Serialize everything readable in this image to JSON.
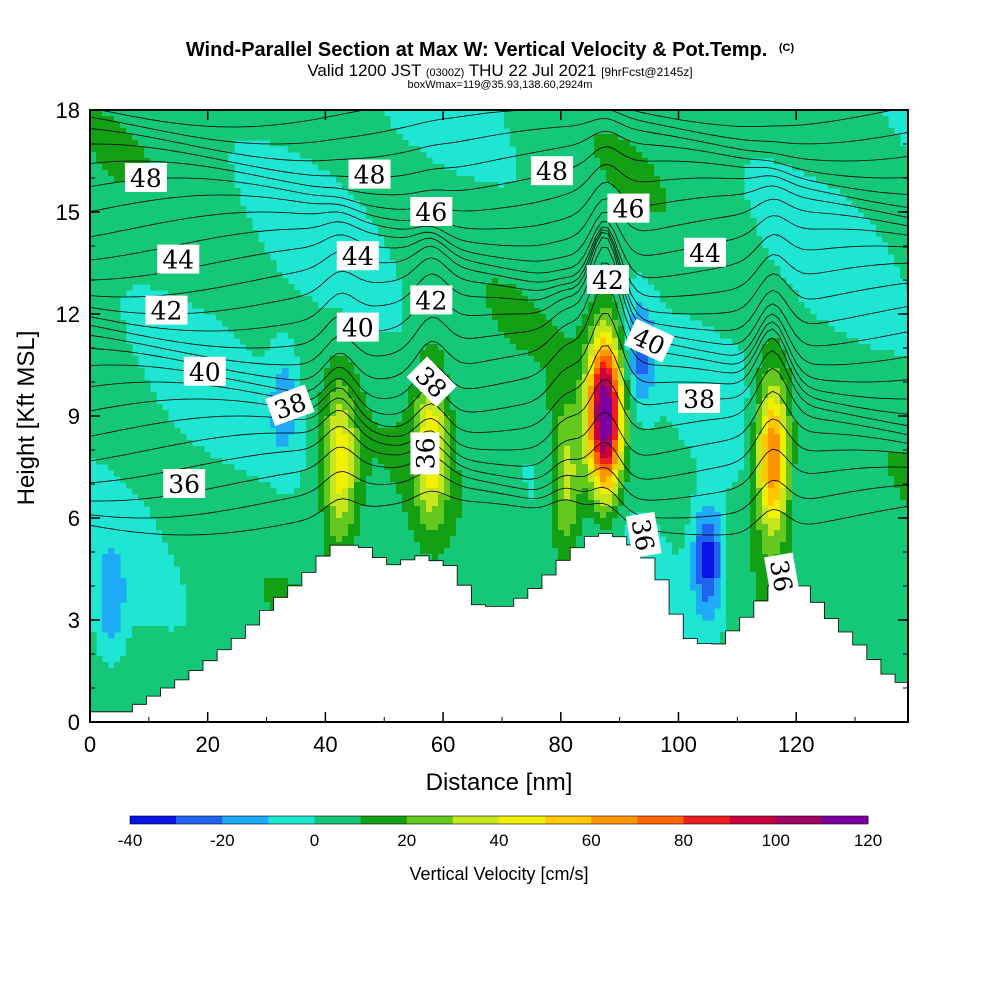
{
  "chart_data": {
    "type": "heatmap",
    "title": "Wind-Parallel Section at Max W: Vertical Velocity & Pot.Temp.",
    "title_mark": "(C)",
    "subtitle_parts": [
      "Valid 1200 JST",
      "(0300Z)",
      "THU 22 Jul 2021",
      "[9hrFcst@2145z]"
    ],
    "subtitle2": "boxWmax=119@35.93,138.60,2924m",
    "xlabel": "Distance [nm]",
    "ylabel": "Height [Kft MSL]",
    "xlim": [
      0,
      139
    ],
    "ylim": [
      0,
      18
    ],
    "x_ticks": [
      0,
      20,
      40,
      60,
      80,
      100,
      120
    ],
    "y_ticks": [
      0,
      3,
      6,
      9,
      12,
      15,
      18
    ],
    "colorbar": {
      "label": "Vertical Velocity [cm/s]",
      "levels": [
        -40,
        -30,
        -20,
        -10,
        0,
        10,
        20,
        30,
        40,
        50,
        60,
        70,
        80,
        90,
        100,
        110,
        120
      ],
      "tick_labels": [
        -40,
        -20,
        0,
        20,
        40,
        60,
        80,
        100,
        120
      ],
      "colors": [
        "#0a14e6",
        "#1e64f0",
        "#1eaaf5",
        "#1ee6d2",
        "#14c878",
        "#14a014",
        "#64c81e",
        "#c8e61e",
        "#f0f000",
        "#ffc800",
        "#ff9600",
        "#ff6400",
        "#f01e1e",
        "#c8003c",
        "#a00064",
        "#7a00a0"
      ]
    },
    "terrain": [
      {
        "x": 0,
        "h": 0.3
      },
      {
        "x": 5,
        "h": 0.3
      },
      {
        "x": 10,
        "h": 0.8
      },
      {
        "x": 15,
        "h": 1.3
      },
      {
        "x": 20,
        "h": 1.9
      },
      {
        "x": 25,
        "h": 2.6
      },
      {
        "x": 30,
        "h": 3.5
      },
      {
        "x": 35,
        "h": 4.2
      },
      {
        "x": 40,
        "h": 5.2
      },
      {
        "x": 45,
        "h": 5.2
      },
      {
        "x": 50,
        "h": 4.6
      },
      {
        "x": 55,
        "h": 4.9
      },
      {
        "x": 60,
        "h": 4.6
      },
      {
        "x": 65,
        "h": 3.4
      },
      {
        "x": 70,
        "h": 3.4
      },
      {
        "x": 75,
        "h": 4.0
      },
      {
        "x": 80,
        "h": 4.9
      },
      {
        "x": 85,
        "h": 5.6
      },
      {
        "x": 90,
        "h": 5.4
      },
      {
        "x": 95,
        "h": 4.6
      },
      {
        "x": 100,
        "h": 2.5
      },
      {
        "x": 105,
        "h": 2.2
      },
      {
        "x": 110,
        "h": 3.0
      },
      {
        "x": 115,
        "h": 4.0
      },
      {
        "x": 120,
        "h": 4.0
      },
      {
        "x": 125,
        "h": 3.0
      },
      {
        "x": 130,
        "h": 2.2
      },
      {
        "x": 135,
        "h": 1.3
      },
      {
        "x": 139,
        "h": 1.0
      }
    ],
    "updrafts": [
      {
        "x": 42.5,
        "z": 7.5,
        "peak": 42
      },
      {
        "x": 58,
        "z": 8.2,
        "peak": 42
      },
      {
        "x": 87.5,
        "z": 9.0,
        "peak": 119
      },
      {
        "x": 116,
        "z": 7.8,
        "peak": 72
      },
      {
        "x": 81,
        "z": 7.0,
        "peak": 35
      }
    ],
    "downdrafts": [
      {
        "x": 105,
        "z": 4.8,
        "peak": -40
      },
      {
        "x": 93.5,
        "z": 10.8,
        "peak": -25
      },
      {
        "x": 33,
        "z": 9.4,
        "peak": -18
      },
      {
        "x": 3.5,
        "z": 3.3,
        "peak": -18
      }
    ],
    "theta_labels": [
      {
        "text": "48",
        "x": 9.5,
        "z": 16.0,
        "rot": 0
      },
      {
        "text": "48",
        "x": 47.5,
        "z": 16.1,
        "rot": 0
      },
      {
        "text": "48",
        "x": 78.5,
        "z": 16.2,
        "rot": 0
      },
      {
        "text": "46",
        "x": 58,
        "z": 15.0,
        "rot": 0
      },
      {
        "text": "46",
        "x": 91.5,
        "z": 15.1,
        "rot": 0
      },
      {
        "text": "44",
        "x": 15,
        "z": 13.6,
        "rot": 0
      },
      {
        "text": "44",
        "x": 45.5,
        "z": 13.7,
        "rot": 0
      },
      {
        "text": "44",
        "x": 104.5,
        "z": 13.8,
        "rot": 0
      },
      {
        "text": "42",
        "x": 13,
        "z": 12.1,
        "rot": 0
      },
      {
        "text": "42",
        "x": 58,
        "z": 12.4,
        "rot": 0
      },
      {
        "text": "42",
        "x": 88,
        "z": 13.0,
        "rot": 0
      },
      {
        "text": "40",
        "x": 19.5,
        "z": 10.3,
        "rot": 0
      },
      {
        "text": "40",
        "x": 45.5,
        "z": 11.6,
        "rot": 0
      },
      {
        "text": "40",
        "x": 95,
        "z": 11.2,
        "rot": 25
      },
      {
        "text": "38",
        "x": 34,
        "z": 9.3,
        "rot": -20
      },
      {
        "text": "38",
        "x": 58,
        "z": 10.0,
        "rot": 45
      },
      {
        "text": "38",
        "x": 103.5,
        "z": 9.5,
        "rot": 0
      },
      {
        "text": "36",
        "x": 16,
        "z": 7.0,
        "rot": 0
      },
      {
        "text": "36",
        "x": 57,
        "z": 7.9,
        "rot": -90
      },
      {
        "text": "36",
        "x": 94,
        "z": 5.5,
        "rot": 80
      },
      {
        "text": "36",
        "x": 117.5,
        "z": 4.3,
        "rot": 80
      }
    ],
    "theta_contours": [
      35,
      35.5,
      36,
      36.5,
      37,
      37.5,
      38,
      38.5,
      39,
      39.5,
      40,
      40.5,
      41,
      41.5,
      42,
      42.5,
      43,
      43.5,
      44,
      44.5,
      45,
      45.5,
      46,
      46.5,
      47,
      47.5,
      48,
      48.5,
      49
    ]
  }
}
